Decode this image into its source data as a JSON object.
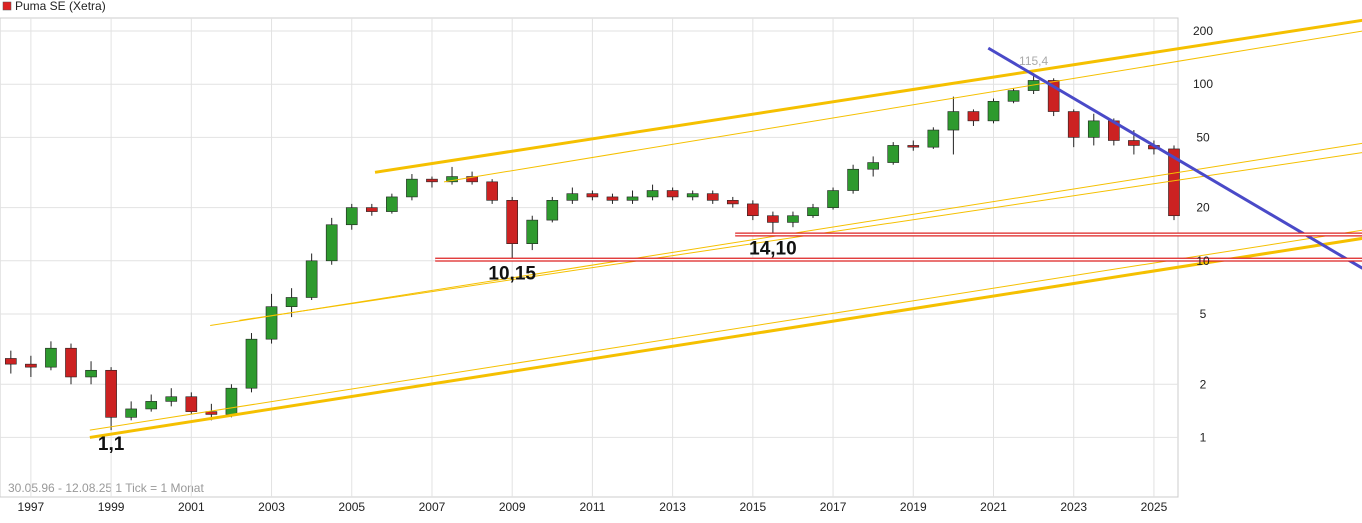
{
  "chart_data": {
    "type": "candlestick",
    "title": "Puma SE (Xetra)",
    "title_color": "#dd2222",
    "footnote": "30.05.96 - 12.08.25   1 Tick = 1 Monat",
    "log_scale": true,
    "grid": true,
    "up_color": "#2e9a2e",
    "down_color": "#cc2222",
    "xlim": [
      1996.23,
      2025.6
    ],
    "xticks": [
      1997,
      1999,
      2001,
      2003,
      2005,
      2007,
      2009,
      2011,
      2013,
      2015,
      2017,
      2019,
      2021,
      2023,
      2025
    ],
    "ylim": [
      0.46,
      237
    ],
    "yticks": [
      1,
      2,
      5,
      10,
      20,
      50,
      100,
      200
    ],
    "x": [
      1996.5,
      1997,
      1997.5,
      1998,
      1998.5,
      1999,
      1999.5,
      2000,
      2000.5,
      2001,
      2001.5,
      2002,
      2002.5,
      2003,
      2003.5,
      2004,
      2004.5,
      2005,
      2005.5,
      2006,
      2006.5,
      2007,
      2007.5,
      2008,
      2008.5,
      2009,
      2009.5,
      2010,
      2010.5,
      2011,
      2011.5,
      2012,
      2012.5,
      2013,
      2013.5,
      2014,
      2014.5,
      2015,
      2015.5,
      2016,
      2016.5,
      2017,
      2017.5,
      2018,
      2018.5,
      2019,
      2019.5,
      2020,
      2020.5,
      2021,
      2021.5,
      2022,
      2022.5,
      2023,
      2023.5,
      2024,
      2024.5,
      2025,
      2025.5
    ],
    "open": [
      2.8,
      2.6,
      2.5,
      3.2,
      2.2,
      2.4,
      1.3,
      1.45,
      1.6,
      1.7,
      1.4,
      1.35,
      1.9,
      3.6,
      5.5,
      6.2,
      10,
      16,
      20,
      19,
      23,
      29,
      28,
      30,
      28,
      22,
      12.5,
      17,
      22,
      24,
      23,
      22,
      23,
      25,
      23,
      24,
      22,
      21,
      18,
      16.5,
      18,
      20,
      25,
      33,
      36,
      45,
      44,
      55,
      70,
      62,
      80,
      92,
      105,
      70,
      50,
      62,
      48,
      45,
      43
    ],
    "high": [
      3.1,
      2.9,
      3.5,
      3.4,
      2.7,
      2.5,
      1.6,
      1.75,
      1.9,
      1.8,
      1.55,
      2.0,
      3.9,
      6.5,
      7,
      11,
      17.5,
      21,
      21,
      24,
      31,
      30,
      34,
      32,
      29,
      23,
      18,
      23,
      26,
      25,
      24,
      25,
      27,
      26,
      25,
      25,
      23,
      22,
      19,
      19,
      21,
      26,
      35,
      39,
      47,
      48,
      57,
      85,
      72,
      83,
      95,
      115.4,
      108,
      72,
      68,
      64,
      55,
      48,
      45
    ],
    "low": [
      2.3,
      2.2,
      2.4,
      2.0,
      2.0,
      1.1,
      1.25,
      1.4,
      1.5,
      1.35,
      1.25,
      1.3,
      1.8,
      3.4,
      4.8,
      6,
      9.5,
      15,
      18,
      18.5,
      22,
      26,
      27,
      27,
      21,
      10.15,
      11.5,
      16.5,
      21,
      22,
      21,
      21,
      22,
      22,
      22,
      21,
      20,
      17,
      14.1,
      15.5,
      17.5,
      19.5,
      24,
      30,
      35,
      42,
      43,
      40,
      58,
      60,
      78,
      88,
      66,
      44,
      45,
      45,
      40,
      40,
      17
    ],
    "close": [
      2.6,
      2.5,
      3.2,
      2.2,
      2.4,
      1.3,
      1.45,
      1.6,
      1.7,
      1.4,
      1.35,
      1.9,
      3.6,
      5.5,
      6.2,
      10,
      16,
      20,
      19,
      23,
      29,
      28,
      30,
      28,
      22,
      12.5,
      17,
      22,
      24,
      23,
      22,
      23,
      25,
      23,
      24,
      22,
      21,
      18,
      16.5,
      18,
      20,
      25,
      33,
      36,
      45,
      44,
      55,
      70,
      62,
      80,
      92,
      105,
      70,
      50,
      62,
      48,
      45,
      43,
      18
    ],
    "trendlines": [
      {
        "color": "#f5c000",
        "width": 3,
        "x": [
          2005.58,
          2030.2
        ],
        "y": [
          31.7,
          230
        ]
      },
      {
        "color": "#f5c000",
        "width": 1,
        "x": [
          2007.3,
          2030.2
        ],
        "y": [
          28,
          200
        ]
      },
      {
        "color": "#f5c000",
        "width": 1,
        "x": [
          2001.47,
          2030.2
        ],
        "y": [
          4.3,
          46.3
        ]
      },
      {
        "color": "#f5c000",
        "width": 1,
        "x": [
          2002.2,
          2030.2
        ],
        "y": [
          4.6,
          41
        ]
      },
      {
        "color": "#f5c000",
        "width": 3,
        "x": [
          1998.47,
          2030.2
        ],
        "y": [
          1.0,
          13.4
        ]
      },
      {
        "color": "#f5c000",
        "width": 1,
        "x": [
          1998.47,
          2030.2
        ],
        "y": [
          1.1,
          14.9
        ]
      },
      {
        "color": "#4a4ac8",
        "width": 3,
        "x": [
          2020.87,
          2030.2
        ],
        "y": [
          160,
          9.07
        ]
      },
      {
        "color": "#dd2222",
        "width": 4,
        "x": [
          2014.56,
          2030.2
        ],
        "y": [
          14.1,
          14.1
        ]
      },
      {
        "color": "#dd2222",
        "width": 4,
        "x": [
          2007.08,
          2030.2
        ],
        "y": [
          10.15,
          10.15
        ]
      }
    ],
    "annotations": [
      {
        "label": "1,1",
        "x": 1999.0,
        "y": 1.1,
        "color": "#111111"
      },
      {
        "label": "10,15",
        "x": 2009.0,
        "y": 10.15,
        "color": "#111111"
      },
      {
        "label": "14,10",
        "x": 2015.5,
        "y": 14.1,
        "color": "#111111"
      },
      {
        "label": "115,4",
        "x": 2022.0,
        "y": 115.4,
        "color": "#aaaaaa"
      }
    ]
  }
}
